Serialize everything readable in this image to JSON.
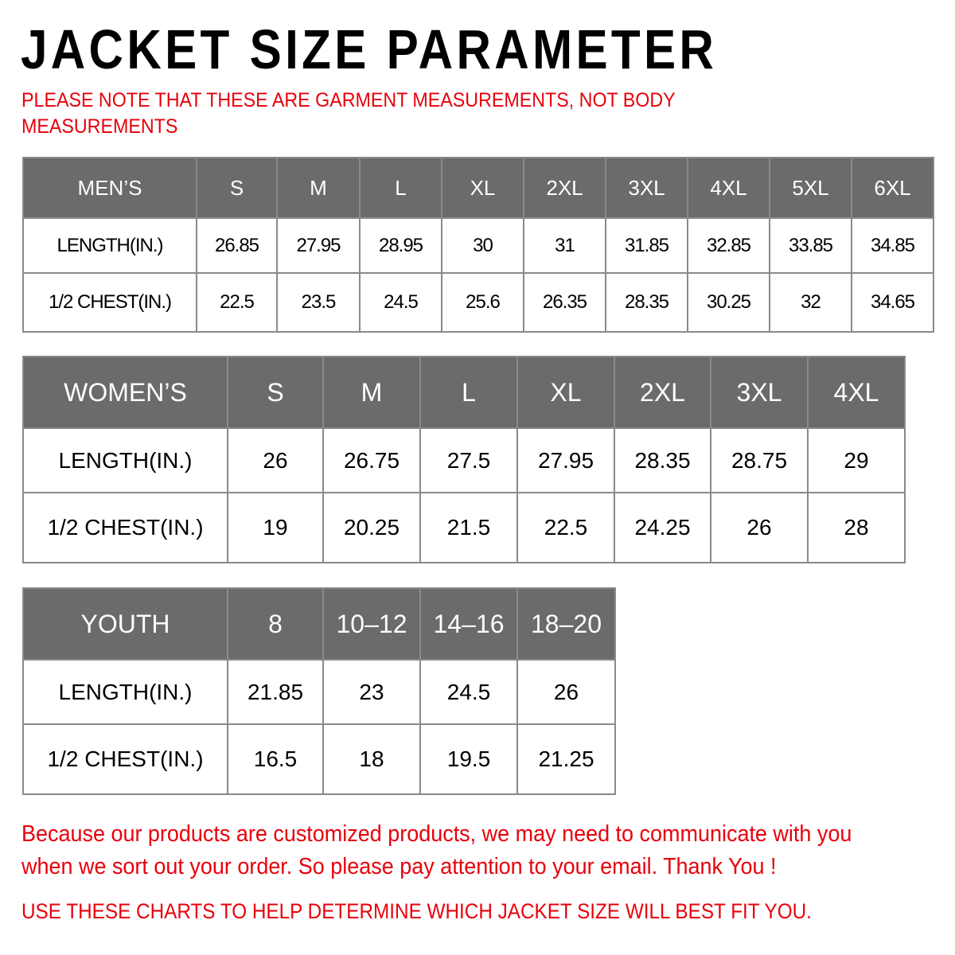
{
  "title": "JACKET SIZE PARAMETER",
  "note": "PLEASE NOTE THAT THESE ARE GARMENT MEASUREMENTS, NOT BODY MEASUREMENTS",
  "colors": {
    "header_bg": "#6b6b6b",
    "accent_red": "#e8000b",
    "border": "#8a8a8a"
  },
  "tables": {
    "men": {
      "header": [
        "MEN’S",
        "S",
        "M",
        "L",
        "XL",
        "2XL",
        "3XL",
        "4XL",
        "5XL",
        "6XL"
      ],
      "rows": [
        [
          "LENGTH(IN.)",
          "26.85",
          "27.95",
          "28.95",
          "30",
          "31",
          "31.85",
          "32.85",
          "33.85",
          "34.85"
        ],
        [
          "1/2 CHEST(IN.)",
          "22.5",
          "23.5",
          "24.5",
          "25.6",
          "26.35",
          "28.35",
          "30.25",
          "32",
          "34.65"
        ]
      ]
    },
    "women": {
      "header": [
        "WOMEN’S",
        "S",
        "M",
        "L",
        "XL",
        "2XL",
        "3XL",
        "4XL"
      ],
      "rows": [
        [
          "LENGTH(IN.)",
          "26",
          "26.75",
          "27.5",
          "27.95",
          "28.35",
          "28.75",
          "29"
        ],
        [
          "1/2 CHEST(IN.)",
          "19",
          "20.25",
          "21.5",
          "22.5",
          "24.25",
          "26",
          "28"
        ]
      ]
    },
    "youth": {
      "header": [
        "YOUTH",
        "8",
        "10–12",
        "14–16",
        "18–20"
      ],
      "rows": [
        [
          "LENGTH(IN.)",
          "21.85",
          "23",
          "24.5",
          "26"
        ],
        [
          "1/2 CHEST(IN.)",
          "16.5",
          "18",
          "19.5",
          "21.25"
        ]
      ]
    }
  },
  "footer": {
    "message": "Because our products are customized products, we may need to communicate with you when we sort out your order. So please pay attention to your email. Thank You !",
    "message_line1": "Because our products are customized products, we may need to communicate with you",
    "message_line2": "when we sort out your order. So please pay attention to your email. Thank You !",
    "cta": "USE THESE CHARTS TO HELP DETERMINE WHICH JACKET SIZE WILL BEST FIT YOU."
  }
}
